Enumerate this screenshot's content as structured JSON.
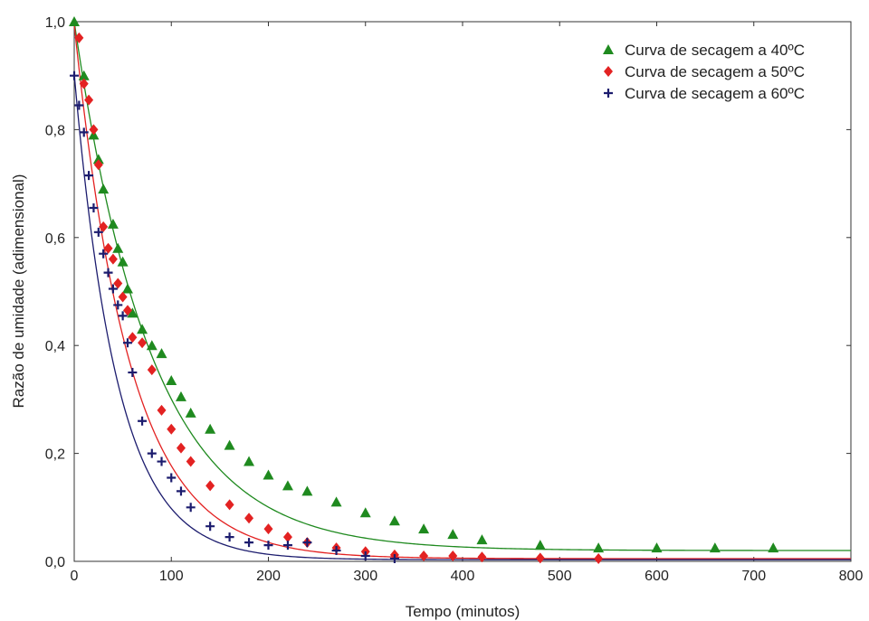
{
  "chart_data": {
    "type": "scatter",
    "xlabel": "Tempo (minutos)",
    "ylabel": "Razão de umidade (adimensional)",
    "xlim": [
      0,
      800
    ],
    "ylim": [
      0,
      1
    ],
    "xticks": [
      0,
      100,
      200,
      300,
      400,
      500,
      600,
      700,
      800
    ],
    "yticks": [
      0,
      0.2,
      0.4,
      0.6,
      0.8,
      1.0
    ],
    "xtick_labels": [
      "0",
      "100",
      "200",
      "300",
      "400",
      "500",
      "600",
      "700",
      "800"
    ],
    "ytick_labels": [
      "0,0",
      "0,2",
      "0,4",
      "0,6",
      "0,8",
      "1,0"
    ],
    "grid": false,
    "legend_position": "top-right",
    "series": [
      {
        "name": "Curva de secagem a 40ºC",
        "marker": "triangle",
        "color": "#1f8a1f",
        "x": [
          0,
          10,
          20,
          25,
          30,
          40,
          45,
          50,
          55,
          60,
          70,
          80,
          90,
          100,
          110,
          120,
          140,
          160,
          180,
          200,
          220,
          240,
          270,
          300,
          330,
          360,
          390,
          420,
          480,
          540,
          600,
          660,
          720
        ],
        "y": [
          1.0,
          0.9,
          0.79,
          0.745,
          0.69,
          0.625,
          0.58,
          0.555,
          0.505,
          0.46,
          0.43,
          0.4,
          0.385,
          0.335,
          0.305,
          0.275,
          0.245,
          0.215,
          0.185,
          0.16,
          0.14,
          0.13,
          0.11,
          0.09,
          0.075,
          0.06,
          0.05,
          0.04,
          0.03,
          0.025,
          0.025,
          0.025,
          0.025
        ],
        "fit": {
          "a": 0.98,
          "k": 0.0125,
          "c": 0.02
        }
      },
      {
        "name": "Curva de secagem a 50ºC",
        "marker": "diamond",
        "color": "#e32222",
        "x": [
          5,
          10,
          15,
          20,
          25,
          30,
          35,
          40,
          45,
          50,
          55,
          60,
          70,
          80,
          90,
          100,
          110,
          120,
          140,
          160,
          180,
          200,
          220,
          240,
          270,
          300,
          330,
          360,
          390,
          420,
          480,
          540
        ],
        "y": [
          0.97,
          0.885,
          0.855,
          0.8,
          0.735,
          0.62,
          0.58,
          0.56,
          0.515,
          0.49,
          0.465,
          0.415,
          0.405,
          0.355,
          0.28,
          0.245,
          0.21,
          0.185,
          0.14,
          0.105,
          0.08,
          0.06,
          0.045,
          0.035,
          0.025,
          0.018,
          0.012,
          0.01,
          0.01,
          0.008,
          0.006,
          0.005
        ],
        "fit": {
          "a": 0.99,
          "k": 0.0175,
          "c": 0.005
        }
      },
      {
        "name": "Curva de secagem a 60ºC",
        "marker": "plus",
        "color": "#1c1c6e",
        "x": [
          0,
          5,
          10,
          15,
          20,
          25,
          30,
          35,
          40,
          45,
          50,
          55,
          60,
          70,
          80,
          90,
          100,
          110,
          120,
          140,
          160,
          180,
          200,
          220,
          240,
          270,
          300,
          330
        ],
        "y": [
          0.9,
          0.845,
          0.795,
          0.715,
          0.655,
          0.61,
          0.57,
          0.535,
          0.505,
          0.475,
          0.455,
          0.405,
          0.35,
          0.26,
          0.2,
          0.185,
          0.155,
          0.13,
          0.1,
          0.065,
          0.045,
          0.035,
          0.03,
          0.03,
          0.035,
          0.02,
          0.01,
          0.005
        ],
        "fit": {
          "a": 0.9,
          "k": 0.0225,
          "c": 0.003
        }
      }
    ]
  }
}
